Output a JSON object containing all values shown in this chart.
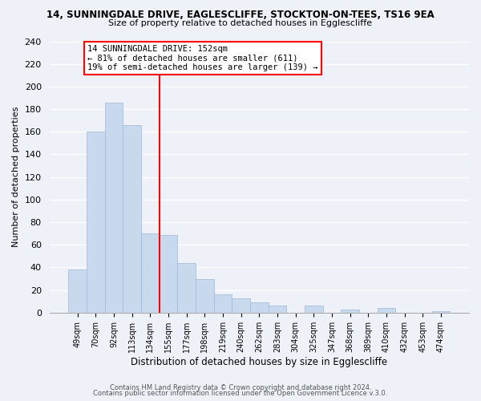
{
  "title1": "14, SUNNINGDALE DRIVE, EAGLESCLIFFE, STOCKTON-ON-TEES, TS16 9EA",
  "title2": "Size of property relative to detached houses in Egglescliffe",
  "xlabel": "Distribution of detached houses by size in Egglescliffe",
  "ylabel": "Number of detached properties",
  "categories": [
    "49sqm",
    "70sqm",
    "92sqm",
    "113sqm",
    "134sqm",
    "155sqm",
    "177sqm",
    "198sqm",
    "219sqm",
    "240sqm",
    "262sqm",
    "283sqm",
    "304sqm",
    "325sqm",
    "347sqm",
    "368sqm",
    "389sqm",
    "410sqm",
    "432sqm",
    "453sqm",
    "474sqm"
  ],
  "values": [
    38,
    160,
    186,
    166,
    70,
    69,
    44,
    30,
    16,
    13,
    9,
    6,
    0,
    6,
    0,
    3,
    0,
    4,
    0,
    0,
    1
  ],
  "bar_color": "#c8d9ee",
  "bar_edge_color": "#a0b8d8",
  "red_line_index": 5,
  "annotation_title": "14 SUNNINGDALE DRIVE: 152sqm",
  "annotation_line1": "← 81% of detached houses are smaller (611)",
  "annotation_line2": "19% of semi-detached houses are larger (139) →",
  "ylim": [
    0,
    240
  ],
  "yticks": [
    0,
    20,
    40,
    60,
    80,
    100,
    120,
    140,
    160,
    180,
    200,
    220,
    240
  ],
  "footnote1": "Contains HM Land Registry data © Crown copyright and database right 2024.",
  "footnote2": "Contains public sector information licensed under the Open Government Licence v.3.0.",
  "bg_color": "#eef2f8"
}
